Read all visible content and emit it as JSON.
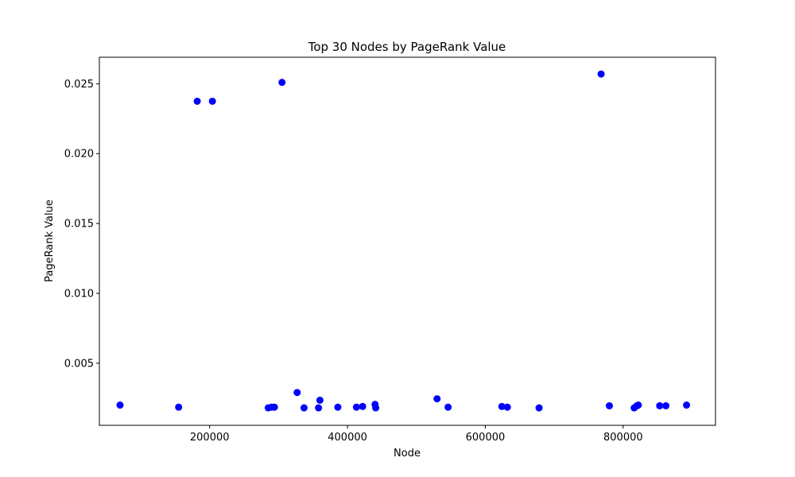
{
  "chart_data": {
    "type": "scatter",
    "title": "Top 30 Nodes by PageRank Value",
    "xlabel": "Node",
    "ylabel": "PageRank Value",
    "xlim": [
      40000,
      934000
    ],
    "ylim": [
      0.00055,
      0.0269
    ],
    "xticks": [
      200000,
      400000,
      600000,
      800000
    ],
    "xtick_labels": [
      "200000",
      "400000",
      "600000",
      "800000"
    ],
    "yticks": [
      0.005,
      0.01,
      0.015,
      0.02,
      0.025
    ],
    "ytick_labels": [
      "0.005",
      "0.010",
      "0.015",
      "0.020",
      "0.025"
    ],
    "grid": false,
    "marker_color": "#0000ff",
    "points": [
      {
        "x": 70000,
        "y": 0.002
      },
      {
        "x": 155000,
        "y": 0.00185
      },
      {
        "x": 182000,
        "y": 0.02375
      },
      {
        "x": 204000,
        "y": 0.02375
      },
      {
        "x": 285000,
        "y": 0.0018
      },
      {
        "x": 290000,
        "y": 0.00185
      },
      {
        "x": 294000,
        "y": 0.00185
      },
      {
        "x": 305000,
        "y": 0.0251
      },
      {
        "x": 327000,
        "y": 0.0029
      },
      {
        "x": 337000,
        "y": 0.0018
      },
      {
        "x": 358000,
        "y": 0.0018
      },
      {
        "x": 360000,
        "y": 0.00235
      },
      {
        "x": 386000,
        "y": 0.00185
      },
      {
        "x": 413000,
        "y": 0.00185
      },
      {
        "x": 422000,
        "y": 0.0019
      },
      {
        "x": 440000,
        "y": 0.00205
      },
      {
        "x": 441000,
        "y": 0.0018
      },
      {
        "x": 530000,
        "y": 0.00245
      },
      {
        "x": 546000,
        "y": 0.00185
      },
      {
        "x": 624000,
        "y": 0.0019
      },
      {
        "x": 632000,
        "y": 0.00185
      },
      {
        "x": 678000,
        "y": 0.0018
      },
      {
        "x": 768000,
        "y": 0.0257
      },
      {
        "x": 780000,
        "y": 0.00195
      },
      {
        "x": 816000,
        "y": 0.0018
      },
      {
        "x": 820000,
        "y": 0.00195
      },
      {
        "x": 822000,
        "y": 0.002
      },
      {
        "x": 853000,
        "y": 0.00195
      },
      {
        "x": 862000,
        "y": 0.00195
      },
      {
        "x": 892000,
        "y": 0.002
      }
    ]
  }
}
